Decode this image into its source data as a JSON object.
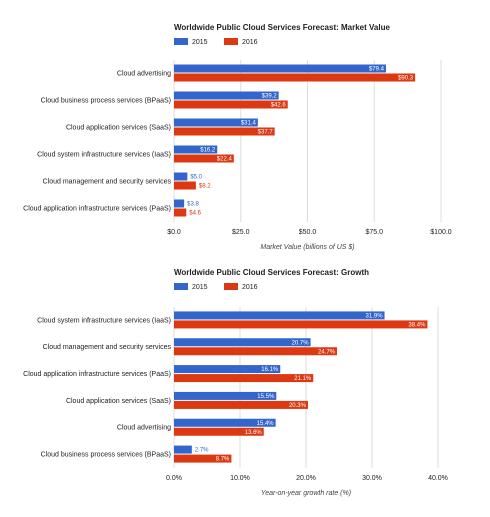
{
  "chart_data": [
    {
      "type": "bar",
      "orientation": "horizontal",
      "title": "Worldwide Public Cloud Services Forecast: Market Value",
      "categories": [
        "Cloud advertising",
        "Cloud business process services (BPaaS)",
        "Cloud application services (SaaS)",
        "Cloud system infrastructure services (IaaS)",
        "Cloud management and security services",
        "Cloud application infrastructure services (PaaS)"
      ],
      "series": [
        {
          "name": "2015",
          "color": "#3366cc",
          "values": [
            79.4,
            39.2,
            31.4,
            16.2,
            5.0,
            3.8
          ],
          "value_labels": [
            "$79.4",
            "$39.2",
            "$31.4",
            "$16.2",
            "$5.0",
            "$3.8"
          ]
        },
        {
          "name": "2016",
          "color": "#dc3912",
          "values": [
            90.3,
            42.6,
            37.7,
            22.4,
            8.2,
            4.6
          ],
          "value_labels": [
            "$90.3",
            "$42.6",
            "$37.7",
            "$22.4",
            "$8.2",
            "$4.6"
          ]
        }
      ],
      "xlim": [
        0,
        100
      ],
      "xticks": [
        {
          "value": 0,
          "label": "$0.0"
        },
        {
          "value": 25,
          "label": "$25.0"
        },
        {
          "value": 50,
          "label": "$50.0"
        },
        {
          "value": 75,
          "label": "$75.0"
        },
        {
          "value": 100,
          "label": "$100.0"
        }
      ],
      "xlabel": "Market Value (billions of US $)",
      "grid": true
    },
    {
      "type": "bar",
      "orientation": "horizontal",
      "title": "Worldwide Public Cloud Services Forecast: Growth",
      "categories": [
        "Cloud system infrastructure services (IaaS)",
        "Cloud management and security services",
        "Cloud application infrastructure services (PaaS)",
        "Cloud application services (SaaS)",
        "Cloud advertising",
        "Cloud business process services (BPaaS)"
      ],
      "series": [
        {
          "name": "2015",
          "color": "#3366cc",
          "values": [
            31.9,
            20.7,
            16.1,
            15.5,
            15.4,
            2.7
          ],
          "value_labels": [
            "31.9%",
            "20.7%",
            "16.1%",
            "15.5%",
            "15.4%",
            "2.7%"
          ]
        },
        {
          "name": "2016",
          "color": "#dc3912",
          "values": [
            38.4,
            24.7,
            21.1,
            20.3,
            13.6,
            8.7
          ],
          "value_labels": [
            "38.4%",
            "24.7%",
            "21.1%",
            "20.3%",
            "13.6%",
            "8.7%"
          ]
        }
      ],
      "xlim": [
        0,
        40
      ],
      "xticks": [
        {
          "value": 0,
          "label": "0.0%"
        },
        {
          "value": 10,
          "label": "10.0%"
        },
        {
          "value": 20,
          "label": "20.0%"
        },
        {
          "value": 30,
          "label": "30.0%"
        },
        {
          "value": 40,
          "label": "40.0%"
        }
      ],
      "xlabel": "Year-on-year growth rate (%)",
      "grid": true
    }
  ]
}
